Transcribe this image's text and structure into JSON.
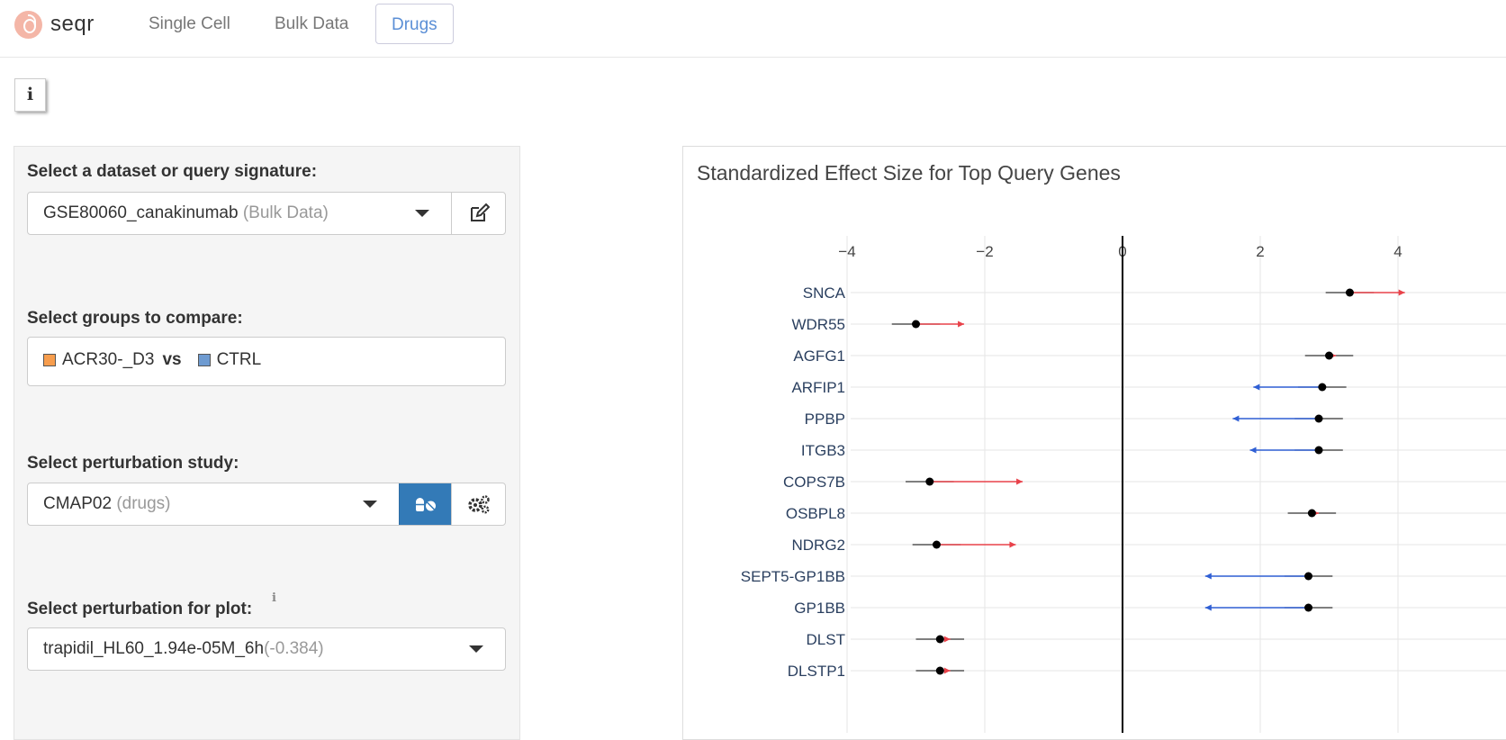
{
  "nav": {
    "brand": "seqr",
    "items": [
      {
        "label": "Single Cell",
        "active": false
      },
      {
        "label": "Bulk Data",
        "active": false
      },
      {
        "label": "Drugs",
        "active": true
      }
    ]
  },
  "info_icon": "info-icon",
  "form": {
    "dataset": {
      "label": "Select a dataset or query signature:",
      "value": "GSE80060_canakinumab",
      "suffix": "(Bulk Data)",
      "edit_icon": "edit-icon"
    },
    "groups": {
      "label": "Select groups to compare:",
      "test": {
        "name": "ACR30-_D3",
        "color": "#f79d4d"
      },
      "vs": "vs",
      "control": {
        "name": "CTRL",
        "color": "#6e9bd1"
      }
    },
    "study": {
      "label": "Select perturbation study:",
      "value": "CMAP02",
      "suffix": "(drugs)",
      "pills_icon": "pills-icon",
      "gears_icon": "gears-icon"
    },
    "perturbation": {
      "label": "Select perturbation for plot:",
      "value": "trapidil_HL60_1.94e-05M_6h",
      "suffix": "(-0.384)"
    }
  },
  "chart_data": {
    "type": "scatter",
    "title": "Standardized Effect Size for Top Query Genes",
    "x_ticks": [
      -4,
      -2,
      0,
      2,
      4
    ],
    "x_tick_labels": [
      "−4",
      "−2",
      "0",
      "2",
      "4"
    ],
    "xlim": [
      -4.2,
      4.2
    ],
    "genes": [
      {
        "name": "SNCA",
        "point": 3.3,
        "ci": [
          2.95,
          3.65
        ],
        "arrow_to": 4.1,
        "direction": "up"
      },
      {
        "name": "WDR55",
        "point": -3.0,
        "ci": [
          -3.35,
          -2.65
        ],
        "arrow_to": -2.3,
        "direction": "up"
      },
      {
        "name": "AGFG1",
        "point": 3.0,
        "ci": [
          2.65,
          3.35
        ],
        "arrow_to": 3.1,
        "direction": "up"
      },
      {
        "name": "ARFIP1",
        "point": 2.9,
        "ci": [
          2.55,
          3.25
        ],
        "arrow_to": 1.9,
        "direction": "down"
      },
      {
        "name": "PPBP",
        "point": 2.85,
        "ci": [
          2.5,
          3.2
        ],
        "arrow_to": 1.6,
        "direction": "down"
      },
      {
        "name": "ITGB3",
        "point": 2.85,
        "ci": [
          2.5,
          3.2
        ],
        "arrow_to": 1.85,
        "direction": "down"
      },
      {
        "name": "COPS7B",
        "point": -2.8,
        "ci": [
          -3.15,
          -2.45
        ],
        "arrow_to": -1.45,
        "direction": "up"
      },
      {
        "name": "OSBPL8",
        "point": 2.75,
        "ci": [
          2.4,
          3.1
        ],
        "arrow_to": 2.85,
        "direction": "up"
      },
      {
        "name": "NDRG2",
        "point": -2.7,
        "ci": [
          -3.05,
          -2.35
        ],
        "arrow_to": -1.55,
        "direction": "up"
      },
      {
        "name": "SEPT5-GP1BB",
        "point": 2.7,
        "ci": [
          2.35,
          3.05
        ],
        "arrow_to": 1.2,
        "direction": "down"
      },
      {
        "name": "GP1BB",
        "point": 2.7,
        "ci": [
          2.35,
          3.05
        ],
        "arrow_to": 1.2,
        "direction": "down"
      },
      {
        "name": "DLST",
        "point": -2.65,
        "ci": [
          -3.0,
          -2.3
        ],
        "arrow_to": -2.5,
        "direction": "up"
      },
      {
        "name": "DLSTP1",
        "point": -2.65,
        "ci": [
          -3.0,
          -2.3
        ],
        "arrow_to": -2.5,
        "direction": "up"
      }
    ],
    "colors": {
      "up": "#e8424a",
      "down": "#2f5fd4",
      "point": "#000000",
      "ci": "#333333",
      "zero_line": "#000000",
      "grid": "#e5e5e5"
    }
  }
}
